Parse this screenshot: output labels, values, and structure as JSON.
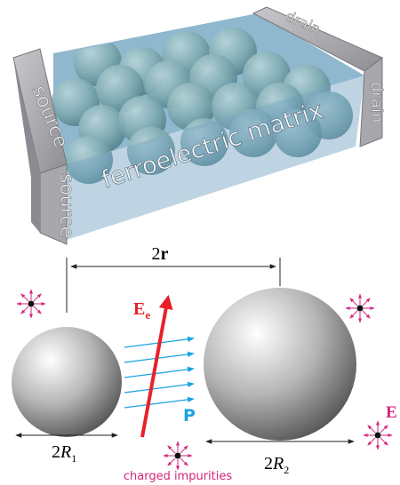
{
  "device": {
    "drain_top": "drain",
    "drain_side": "drain",
    "source_top": "source",
    "source_side": "source",
    "matrix": "ferroelectric matrix"
  },
  "labels": {
    "separation": {
      "prefix": "2",
      "symbol": "r"
    },
    "external_field": {
      "symbol": "E",
      "subscript": "e"
    },
    "polarization": "P",
    "field": "E",
    "radius_1": {
      "prefix": "2",
      "symbol": "R",
      "subscript": "1"
    },
    "radius_2": {
      "prefix": "2",
      "symbol": "R",
      "subscript": "2"
    },
    "impurities": "charged impurities"
  }
}
